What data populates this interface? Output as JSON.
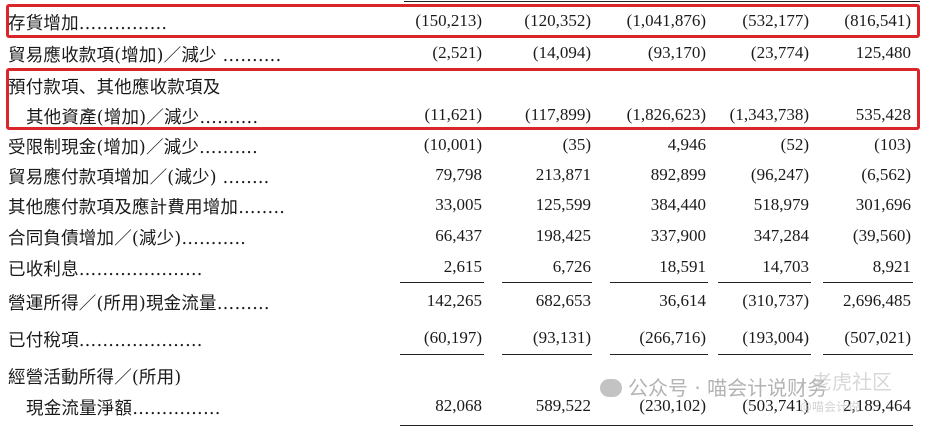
{
  "rows": [
    {
      "label": "存貨增加……………",
      "values": [
        "(150,213)",
        "(120,352)",
        "(1,041,876)",
        "(532,177)",
        "(816,541)"
      ]
    },
    {
      "label": "貿易應收款項(增加)／減少 ……….",
      "values": [
        "(2,521)",
        "(14,094)",
        "(93,170)",
        "(23,774)",
        "125,480"
      ]
    },
    {
      "label": "預付款項、其他應收款項及",
      "label2": "其他資產(增加)／減少……….",
      "values": [
        "(11,621)",
        "(117,899)",
        "(1,826,623)",
        "(1,343,738)",
        "535,428"
      ]
    },
    {
      "label": "受限制現金(增加)／減少……….",
      "values": [
        "(10,001)",
        "(35)",
        "4,946",
        "(52)",
        "(103)"
      ]
    },
    {
      "label": "貿易應付款項增加／(減少) ……..",
      "values": [
        "79,798",
        "213,871",
        "892,899",
        "(96,247)",
        "(6,562)"
      ]
    },
    {
      "label": "其他應付款項及應計費用增加……..",
      "values": [
        "33,005",
        "125,599",
        "384,440",
        "518,979",
        "301,696"
      ]
    },
    {
      "label": "合同負債增加／(減少)………..",
      "values": [
        "66,437",
        "198,425",
        "337,900",
        "347,284",
        "(39,560)"
      ]
    },
    {
      "label": "已收利息…………………",
      "values": [
        "2,615",
        "6,726",
        "18,591",
        "14,703",
        "8,921"
      ]
    },
    {
      "label": "營運所得／(所用)現金流量………",
      "values": [
        "142,265",
        "682,653",
        "36,614",
        "(310,737)",
        "2,696,485"
      ]
    },
    {
      "label": "已付稅項…………………",
      "values": [
        "(60,197)",
        "(93,131)",
        "(266,716)",
        "(193,004)",
        "(507,021)"
      ]
    },
    {
      "label": "經營活動所得／(所用)",
      "label2": "現金流量淨額……………",
      "values": [
        "82,068",
        "589,522",
        "(230,102)",
        "(503,741)",
        "2,189,464"
      ]
    }
  ],
  "watermark": {
    "wechat": "公众号 · 喵会计说财务",
    "site": "老虎社区",
    "small": "@喵会计说"
  }
}
